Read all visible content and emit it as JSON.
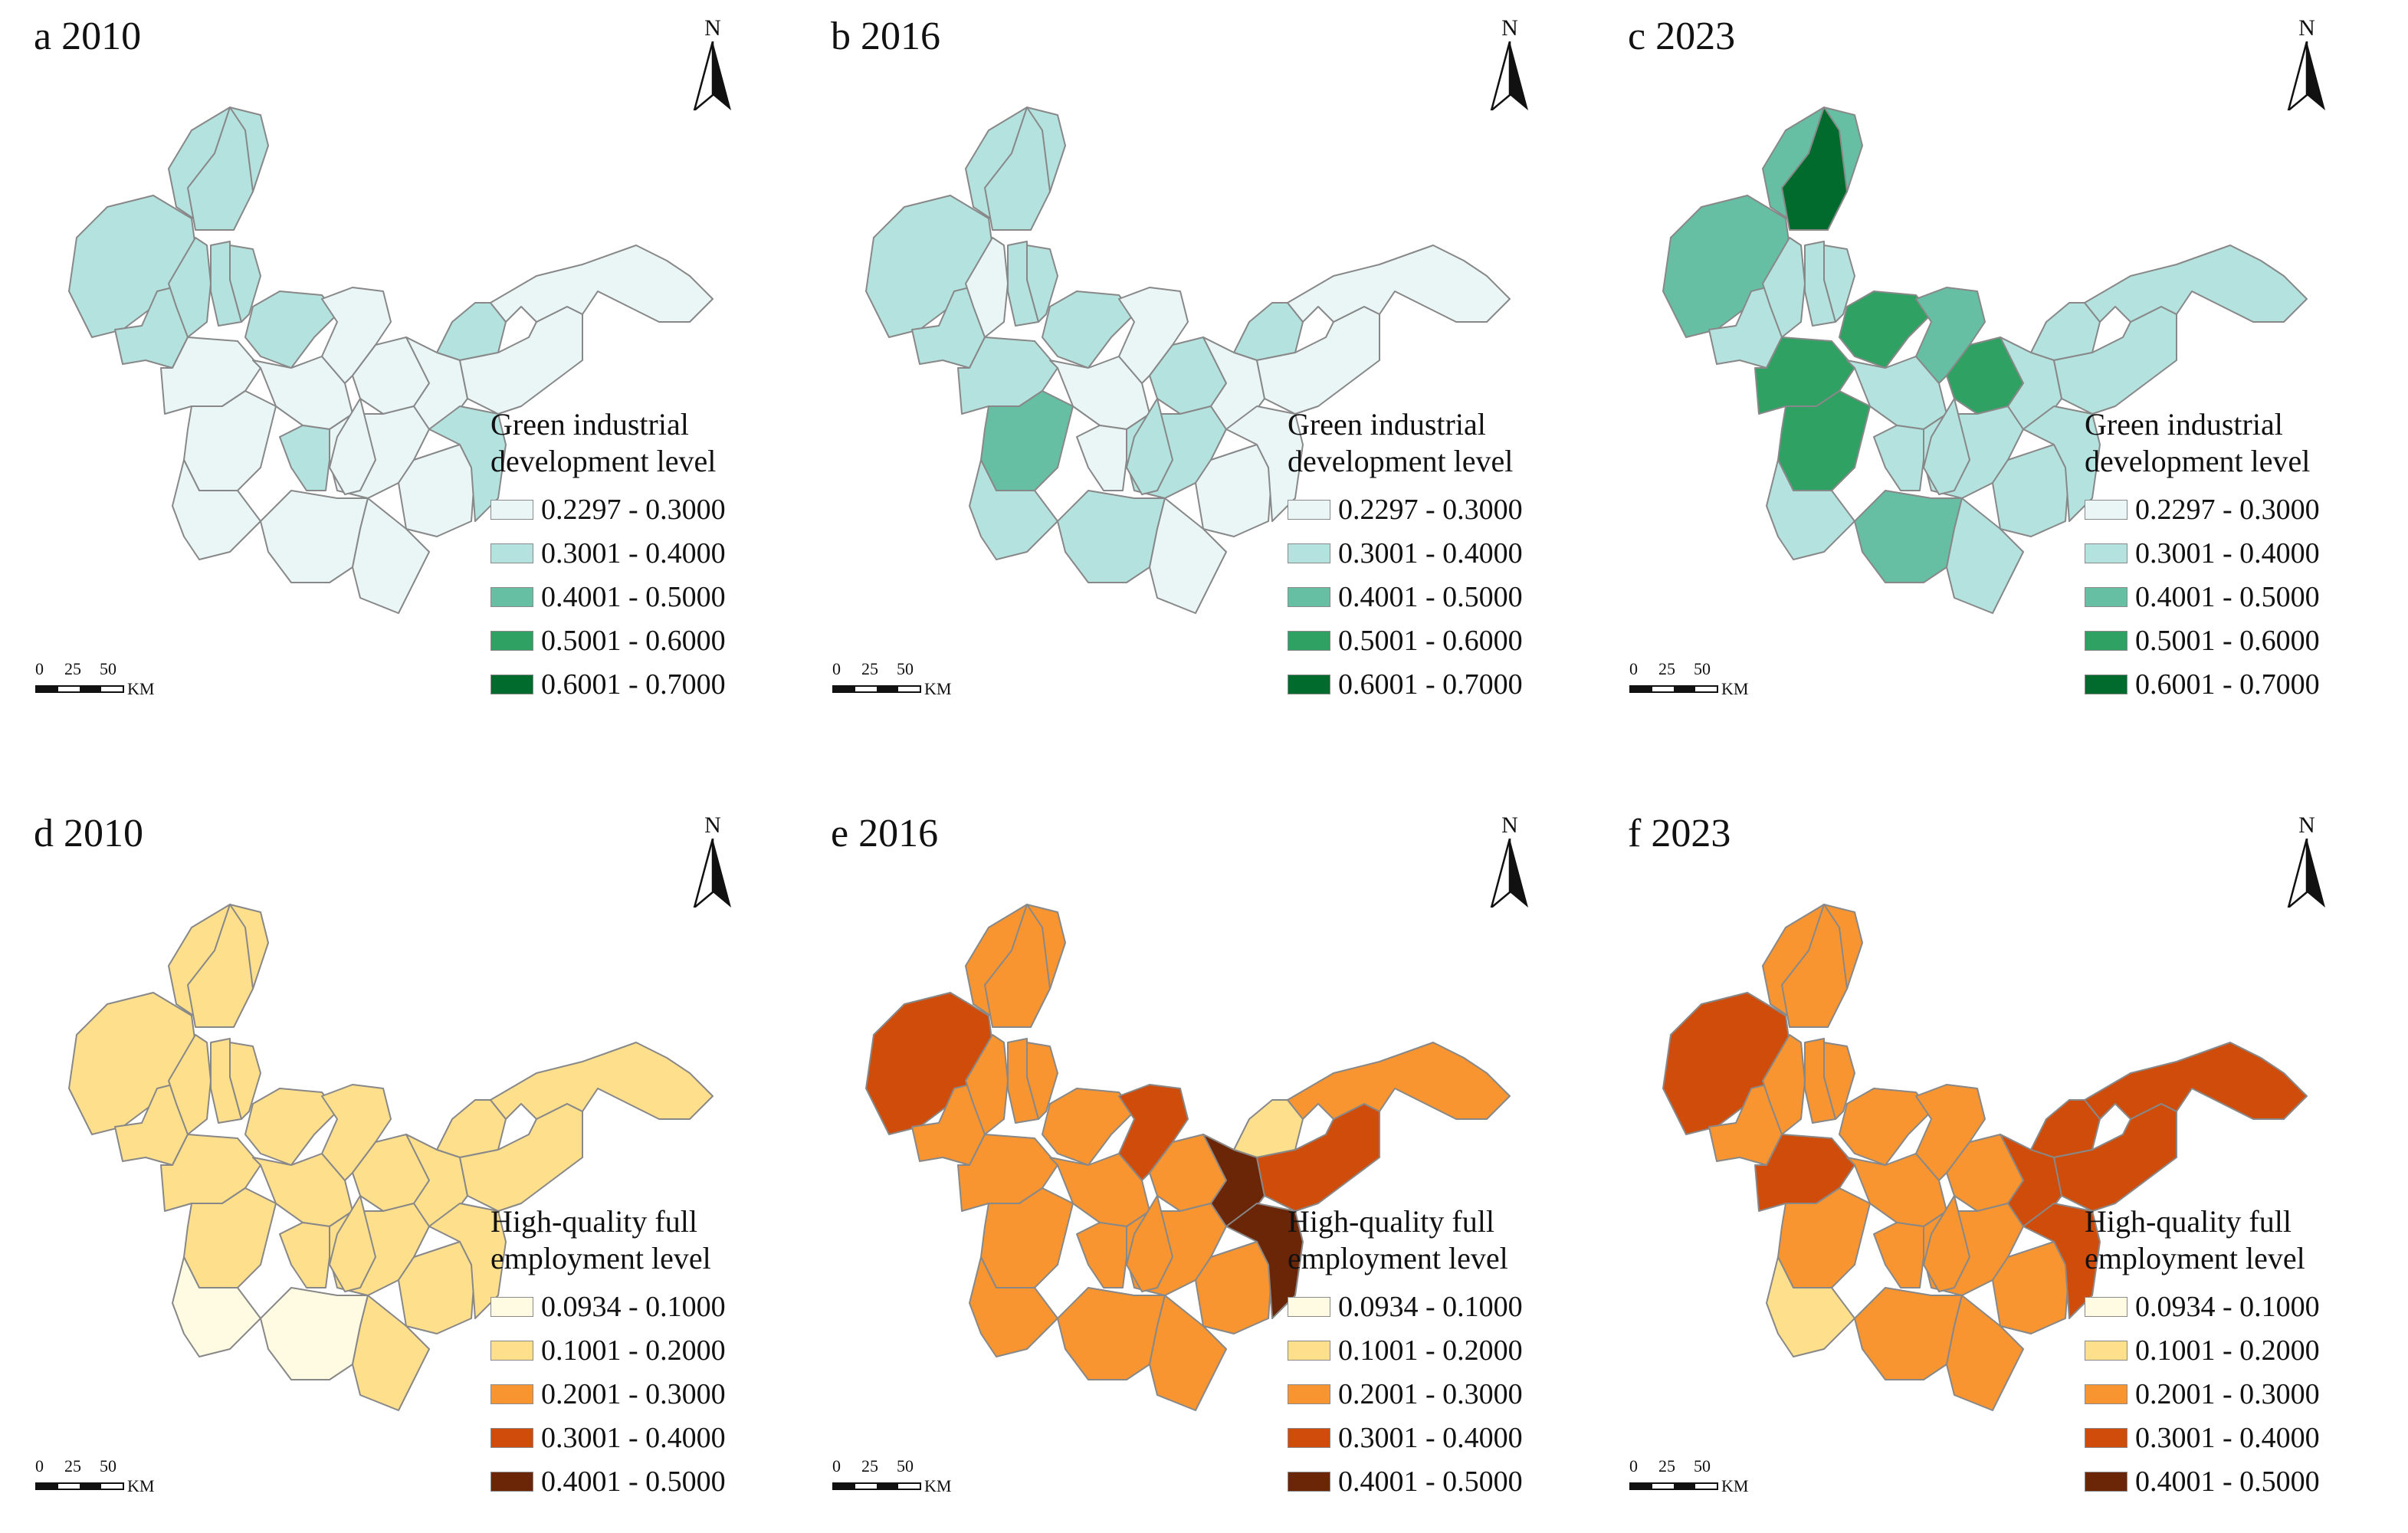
{
  "panels": [
    {
      "id": "a",
      "title": "a 2010",
      "scheme": "green",
      "classes": [
        1,
        1,
        1,
        1,
        1,
        1,
        1,
        1,
        0,
        0,
        0,
        1,
        0,
        0,
        0,
        0,
        0,
        0,
        0,
        0,
        1,
        0,
        1,
        0,
        0
      ]
    },
    {
      "id": "b",
      "title": "b 2016",
      "scheme": "green",
      "classes": [
        1,
        1,
        1,
        1,
        0,
        1,
        1,
        1,
        1,
        2,
        0,
        0,
        0,
        1,
        1,
        0,
        1,
        1,
        1,
        0,
        1,
        0,
        0,
        0,
        0
      ]
    },
    {
      "id": "c",
      "title": "c 2023",
      "scheme": "green",
      "classes": [
        2,
        2,
        4,
        1,
        1,
        1,
        1,
        3,
        3,
        3,
        1,
        1,
        2,
        3,
        1,
        1,
        1,
        1,
        2,
        1,
        1,
        1,
        1,
        1,
        1
      ]
    },
    {
      "id": "d",
      "title": "d 2010",
      "scheme": "orange",
      "classes": [
        1,
        1,
        1,
        1,
        1,
        1,
        1,
        1,
        1,
        1,
        1,
        1,
        1,
        1,
        1,
        1,
        1,
        0,
        0,
        1,
        1,
        1,
        1,
        1,
        1
      ]
    },
    {
      "id": "e",
      "title": "e 2016",
      "scheme": "orange",
      "classes": [
        3,
        2,
        2,
        2,
        2,
        2,
        2,
        2,
        2,
        2,
        2,
        2,
        3,
        2,
        2,
        2,
        2,
        2,
        2,
        2,
        1,
        4,
        4,
        3,
        2
      ]
    },
    {
      "id": "f",
      "title": "f 2023",
      "scheme": "orange",
      "classes": [
        3,
        2,
        2,
        2,
        2,
        2,
        2,
        2,
        3,
        2,
        2,
        2,
        2,
        2,
        2,
        2,
        2,
        1,
        2,
        2,
        3,
        3,
        3,
        3,
        3
      ]
    }
  ],
  "legends": {
    "green": {
      "title": "Green industrial development level",
      "items": [
        "0.2297 - 0.3000",
        "0.3001 - 0.4000",
        "0.4001 - 0.5000",
        "0.5001 - 0.6000",
        "0.6001 - 0.7000"
      ],
      "colors": [
        "#eaf6f6",
        "#b4e2df",
        "#66bfa3",
        "#2ea163",
        "#006b2c"
      ]
    },
    "orange": {
      "title": "High-quality full employment level",
      "items": [
        "0.0934 - 0.1000",
        "0.1001 - 0.2000",
        "0.2001 - 0.3000",
        "0.3001 - 0.4000",
        "0.4001 - 0.5000"
      ],
      "colors": [
        "#fffbe2",
        "#fddf8c",
        "#f89530",
        "#cf4c0b",
        "#6b2608"
      ]
    }
  },
  "north_label": "N",
  "scale_bar": {
    "ticks": [
      "0",
      "25",
      "50"
    ],
    "unit": "KM"
  },
  "border_color": "#888888"
}
